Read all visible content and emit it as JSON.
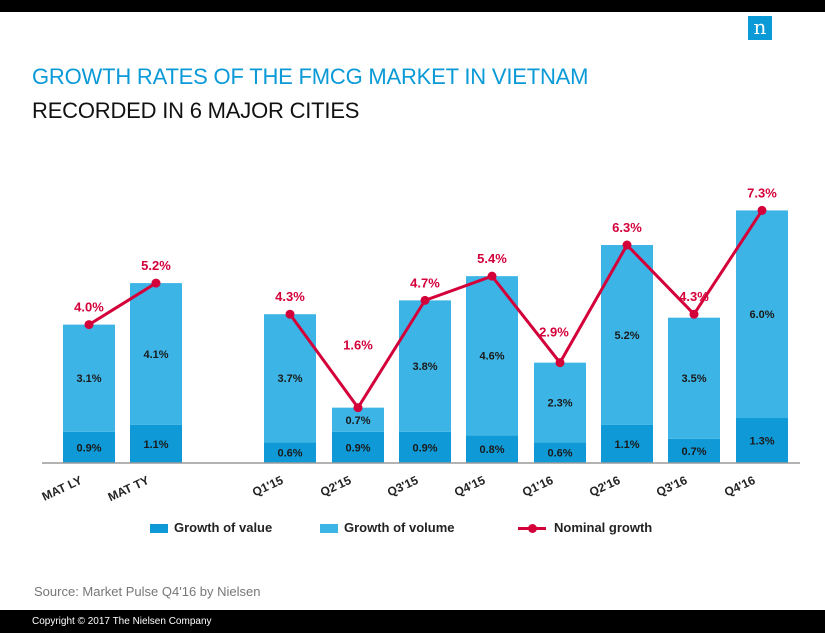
{
  "header": {
    "title_line1": "GROWTH RATES OF THE FMCG MARKET IN VIETNAM",
    "title_line2": "RECORDED IN 6 MAJOR CITIES",
    "logo_letter": "n"
  },
  "legend": {
    "value_label": "Growth of value",
    "volume_label": "Growth of volume",
    "nominal_label": "Nominal growth"
  },
  "source": "Source: Market Pulse Q4'16 by Nielsen",
  "footer": "Copyright © 2017  The Nielsen Company",
  "colors": {
    "value": "#0f9ad7",
    "volume": "#3cb4e5",
    "nominal": "#d4003a",
    "brand": "#0a9ad7"
  },
  "chart_data": {
    "type": "bar",
    "stacked": true,
    "categories": [
      "MAT LY",
      "MAT TY",
      "Q1'15",
      "Q2'15",
      "Q3'15",
      "Q4'15",
      "Q1'16",
      "Q2'16",
      "Q3'16",
      "Q4'16"
    ],
    "series": [
      {
        "name": "Growth of value",
        "values": [
          0.9,
          1.1,
          0.6,
          0.9,
          0.9,
          0.8,
          0.6,
          1.1,
          0.7,
          1.3
        ],
        "labels": [
          "0.9%",
          "1.1%",
          "0.6%",
          "0.9%",
          "0.9%",
          "0.8%",
          "0.6%",
          "1.1%",
          "0.7%",
          "1.3%"
        ]
      },
      {
        "name": "Growth of volume",
        "values": [
          3.1,
          4.1,
          3.7,
          0.7,
          3.8,
          4.6,
          2.3,
          5.2,
          3.5,
          6.0
        ],
        "labels": [
          "3.1%",
          "4.1%",
          "3.7%",
          "0.7%",
          "3.8%",
          "4.6%",
          "2.3%",
          "5.2%",
          "3.5%",
          "6.0%"
        ]
      },
      {
        "name": "Nominal growth",
        "type": "line",
        "values": [
          4.0,
          5.2,
          4.3,
          1.6,
          4.7,
          5.4,
          2.9,
          6.3,
          4.3,
          7.3
        ],
        "labels": [
          "4.0%",
          "5.2%",
          "4.3%",
          "1.6%",
          "4.7%",
          "5.4%",
          "2.9%",
          "6.3%",
          "4.3%",
          "7.3%"
        ]
      }
    ],
    "groups": [
      [
        "MAT LY",
        "MAT TY"
      ],
      [
        "Q1'15",
        "Q2'15",
        "Q3'15",
        "Q4'15",
        "Q1'16",
        "Q2'16",
        "Q3'16",
        "Q4'16"
      ]
    ],
    "ylim": [
      0,
      8
    ],
    "grid": false,
    "legend_position": "bottom"
  }
}
